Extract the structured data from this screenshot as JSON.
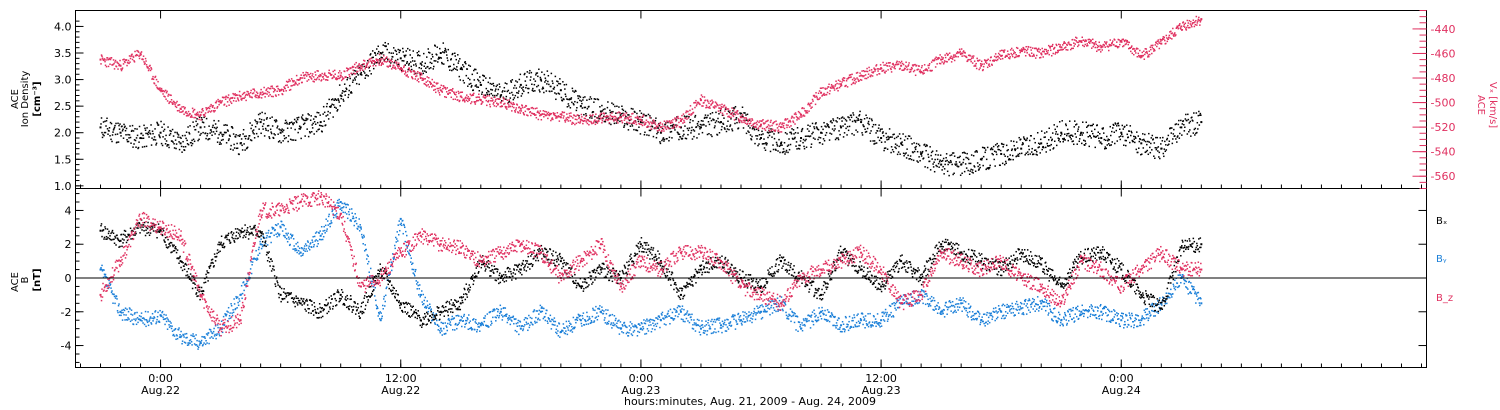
{
  "chart_data": [
    {
      "type": "scatter",
      "panel": "top",
      "left_axis": {
        "label_lines": [
          "ACE",
          "Ion Density",
          "[cm⁻³]"
        ],
        "ticks": [
          1.0,
          1.5,
          2.0,
          2.5,
          3.0,
          3.5,
          4.0
        ],
        "tick_labels": [
          "1.0",
          "1.5",
          "2.0",
          "2.5",
          "3.0",
          "3.5",
          "4.0"
        ],
        "ylim": [
          0.95,
          4.3
        ]
      },
      "right_axis": {
        "label_lines": [
          "ACE",
          "Vₓ [km/s]"
        ],
        "ticks": [
          -560,
          -540,
          -520,
          -500,
          -480,
          -460,
          -440
        ],
        "tick_labels": [
          "-560",
          "-540",
          "-520",
          "-500",
          "-480",
          "-460",
          "-440"
        ],
        "ylim": [
          -570,
          -425
        ],
        "color": "#e03060"
      },
      "series": [
        {
          "color": "#000000",
          "axis": "left",
          "x": [
            -3,
            -2,
            -1,
            0,
            1,
            2,
            3,
            4,
            5,
            6,
            7,
            8,
            9,
            10,
            11,
            12,
            13,
            14,
            15,
            16,
            17,
            18,
            19,
            20,
            21,
            22,
            23,
            24,
            25,
            26,
            27,
            28,
            29,
            30,
            31,
            32,
            33,
            34,
            35,
            36,
            37,
            38,
            39,
            40,
            41,
            42,
            43,
            44,
            45,
            46,
            47,
            48,
            49,
            50,
            51,
            52
          ],
          "y": [
            2.1,
            2.0,
            1.9,
            2.0,
            1.8,
            2.1,
            2.0,
            1.8,
            2.2,
            2.0,
            2.1,
            2.2,
            2.7,
            3.1,
            3.5,
            3.4,
            3.3,
            3.5,
            3.2,
            2.9,
            2.7,
            2.9,
            3.0,
            2.8,
            2.5,
            2.4,
            2.3,
            2.2,
            2.0,
            2.1,
            2.1,
            2.2,
            2.3,
            1.9,
            1.8,
            1.9,
            2.0,
            2.1,
            2.2,
            1.9,
            1.8,
            1.6,
            1.4,
            1.4,
            1.5,
            1.6,
            1.7,
            1.8,
            2.0,
            2.0,
            1.9,
            2.0,
            1.8,
            1.7,
            2.1,
            2.2
          ]
        },
        {
          "color": "#e03060",
          "axis": "right",
          "x": [
            -3,
            -2,
            -1,
            0,
            1,
            2,
            3,
            4,
            5,
            6,
            7,
            8,
            9,
            10,
            11,
            12,
            13,
            14,
            15,
            16,
            17,
            18,
            19,
            20,
            21,
            22,
            23,
            24,
            25,
            26,
            27,
            28,
            29,
            30,
            31,
            32,
            33,
            34,
            35,
            36,
            37,
            38,
            39,
            40,
            41,
            42,
            43,
            44,
            45,
            46,
            47,
            48,
            49,
            50,
            51,
            52
          ],
          "y": [
            -465,
            -470,
            -460,
            -490,
            -505,
            -510,
            -500,
            -495,
            -492,
            -490,
            -480,
            -478,
            -478,
            -470,
            -465,
            -472,
            -480,
            -490,
            -495,
            -498,
            -500,
            -505,
            -510,
            -512,
            -514,
            -513,
            -512,
            -514,
            -520,
            -515,
            -498,
            -505,
            -512,
            -518,
            -520,
            -510,
            -492,
            -485,
            -478,
            -472,
            -470,
            -475,
            -465,
            -460,
            -470,
            -462,
            -458,
            -460,
            -455,
            -450,
            -455,
            -450,
            -462,
            -452,
            -438,
            -432
          ]
        }
      ],
      "xlim": [
        -4.25,
        63.25
      ]
    },
    {
      "type": "scatter",
      "panel": "bottom",
      "left_axis": {
        "label_lines": [
          "ACE",
          "B",
          "[nT]"
        ],
        "ticks": [
          -4,
          -2,
          0,
          2,
          4
        ],
        "tick_labels": [
          "-4",
          "-2",
          "0",
          "2",
          "4"
        ],
        "ylim": [
          -5.3,
          5.3
        ]
      },
      "zero_line": true,
      "series": [
        {
          "name": "Bₓ",
          "color": "#000000",
          "x": [
            -3,
            -2,
            -1,
            0,
            1,
            2,
            3,
            4,
            5,
            6,
            7,
            8,
            9,
            10,
            11,
            12,
            13,
            14,
            15,
            16,
            17,
            18,
            19,
            20,
            21,
            22,
            23,
            24,
            25,
            26,
            27,
            28,
            29,
            30,
            31,
            32,
            33,
            34,
            35,
            36,
            37,
            38,
            39,
            40,
            41,
            42,
            43,
            44,
            45,
            46,
            47,
            48,
            49,
            50,
            51,
            52
          ],
          "y": [
            2.8,
            2.2,
            3.0,
            2.8,
            1.0,
            -1.0,
            2.0,
            2.8,
            2.7,
            -1.0,
            -1.5,
            -2.0,
            -1.0,
            -2.0,
            0.5,
            -1.5,
            -2.5,
            -2.0,
            -1.5,
            1.0,
            0.0,
            0.5,
            1.5,
            1.0,
            -0.5,
            0.5,
            0.0,
            2.0,
            1.0,
            -1.0,
            0.5,
            1.0,
            0.0,
            -0.5,
            1.0,
            0.0,
            -1.0,
            1.5,
            0.5,
            -0.5,
            1.0,
            0.0,
            2.0,
            1.5,
            1.0,
            0.5,
            1.5,
            0.8,
            -0.5,
            1.2,
            1.5,
            0.5,
            -1.0,
            -1.8,
            1.8,
            2.0
          ]
        },
        {
          "name": "Bᵧ",
          "color": "#1a7fd8",
          "x": [
            -3,
            -2,
            -1,
            0,
            1,
            2,
            3,
            4,
            5,
            6,
            7,
            8,
            9,
            10,
            11,
            12,
            13,
            14,
            15,
            16,
            17,
            18,
            19,
            20,
            21,
            22,
            23,
            24,
            25,
            26,
            27,
            28,
            29,
            30,
            31,
            32,
            33,
            34,
            35,
            36,
            37,
            38,
            39,
            40,
            41,
            42,
            43,
            44,
            45,
            46,
            47,
            48,
            49,
            50,
            51,
            52
          ],
          "y": [
            0.5,
            -2.0,
            -2.5,
            -2.2,
            -3.5,
            -3.8,
            -3.0,
            -1.0,
            2.0,
            3.0,
            1.5,
            2.5,
            4.5,
            3.0,
            -2.5,
            3.5,
            -1.0,
            -3.0,
            -2.5,
            -2.8,
            -2.0,
            -3.0,
            -2.0,
            -3.2,
            -2.5,
            -2.0,
            -3.0,
            -3.0,
            -2.5,
            -2.0,
            -3.0,
            -2.8,
            -2.5,
            -2.0,
            -1.5,
            -3.0,
            -2.0,
            -2.8,
            -2.5,
            -2.5,
            -1.5,
            -1.0,
            -2.0,
            -1.5,
            -2.5,
            -2.0,
            -1.8,
            -1.5,
            -2.5,
            -2.0,
            -2.0,
            -2.5,
            -2.5,
            -1.5,
            0.0,
            -1.5
          ]
        },
        {
          "name": "B_z",
          "color": "#e03060",
          "x": [
            -3,
            -2,
            -1,
            0,
            1,
            2,
            3,
            4,
            5,
            6,
            7,
            8,
            9,
            10,
            11,
            12,
            13,
            14,
            15,
            16,
            17,
            18,
            19,
            20,
            21,
            22,
            23,
            24,
            25,
            26,
            27,
            28,
            29,
            30,
            31,
            32,
            33,
            34,
            35,
            36,
            37,
            38,
            39,
            40,
            41,
            42,
            43,
            44,
            45,
            46,
            47,
            48,
            49,
            50,
            51,
            52
          ],
          "y": [
            -1.0,
            1.0,
            3.5,
            3.0,
            2.5,
            -1.0,
            -3.0,
            -2.5,
            4.0,
            4.0,
            4.5,
            4.8,
            3.8,
            -0.5,
            0.0,
            1.5,
            2.5,
            2.0,
            1.8,
            1.0,
            1.5,
            2.0,
            1.5,
            0.0,
            1.0,
            2.0,
            -0.5,
            1.0,
            0.5,
            1.5,
            1.5,
            1.0,
            -0.5,
            -1.0,
            -1.5,
            0.0,
            0.5,
            1.0,
            1.5,
            0.5,
            -1.5,
            -1.0,
            1.5,
            1.0,
            0.5,
            1.0,
            0.0,
            -0.5,
            -1.5,
            1.0,
            0.5,
            -0.5,
            0.5,
            1.5,
            0.5,
            0.5
          ]
        }
      ],
      "xlim": [
        -4.25,
        63.25
      ]
    }
  ],
  "x_axis": {
    "ticks": [
      {
        "hour": 0,
        "time": "0:00",
        "date": "Aug.22"
      },
      {
        "hour": 12,
        "time": "12:00",
        "date": "Aug.22"
      },
      {
        "hour": 24,
        "time": "0:00",
        "date": "Aug.23"
      },
      {
        "hour": 36,
        "time": "12:00",
        "date": "Aug.23"
      },
      {
        "hour": 48,
        "time": "0:00",
        "date": "Aug.24"
      }
    ],
    "title": "hours:minutes, Aug. 21, 2009 - Aug. 24, 2009"
  },
  "legend": [
    {
      "label": "Bₓ",
      "color": "#000000"
    },
    {
      "label": "Bᵧ",
      "color": "#1a7fd8"
    },
    {
      "label": "B_z",
      "color": "#e03060"
    }
  ]
}
